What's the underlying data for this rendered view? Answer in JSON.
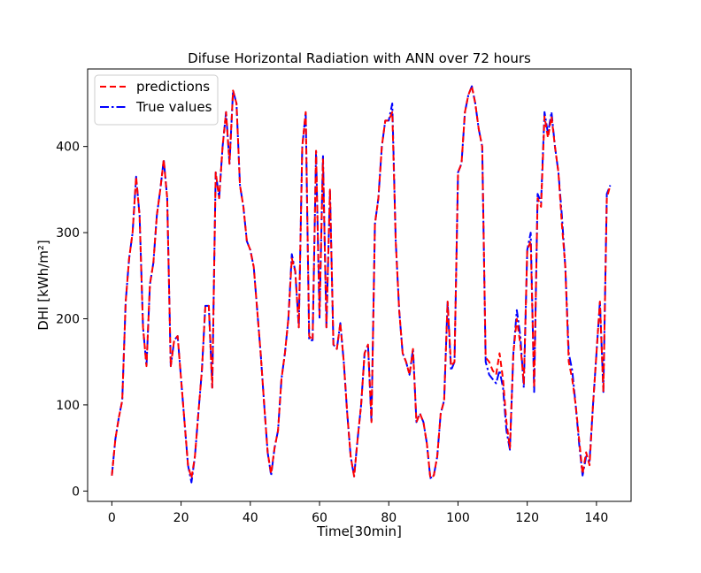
{
  "chart_data": {
    "type": "line",
    "title": "Difuse Horizontal Radiation with ANN over 72 hours",
    "xlabel": "Time[30min]",
    "ylabel": "DHI [kWh/m²]",
    "xlim": [
      -7,
      150
    ],
    "ylim": [
      -12,
      490
    ],
    "xticks": [
      0,
      20,
      40,
      60,
      80,
      100,
      120,
      140
    ],
    "yticks": [
      0,
      100,
      200,
      300,
      400
    ],
    "grid": false,
    "legend_position": "top-left",
    "series": [
      {
        "name": "predictions",
        "color": "#ff0000",
        "style": "dashed",
        "values": [
          18,
          60,
          85,
          105,
          220,
          270,
          300,
          365,
          320,
          190,
          145,
          240,
          265,
          320,
          350,
          385,
          340,
          145,
          175,
          180,
          130,
          80,
          30,
          15,
          40,
          90,
          140,
          215,
          215,
          120,
          370,
          340,
          400,
          440,
          380,
          465,
          450,
          355,
          330,
          290,
          280,
          260,
          210,
          160,
          100,
          45,
          20,
          50,
          70,
          130,
          160,
          200,
          270,
          255,
          190,
          400,
          440,
          180,
          175,
          395,
          205,
          385,
          190,
          350,
          170,
          165,
          195,
          150,
          90,
          40,
          17,
          60,
          100,
          160,
          170,
          80,
          310,
          340,
          400,
          430,
          430,
          440,
          290,
          210,
          160,
          150,
          135,
          165,
          80,
          90,
          80,
          55,
          15,
          18,
          40,
          90,
          105,
          220,
          145,
          150,
          370,
          380,
          440,
          460,
          470,
          450,
          420,
          400,
          155,
          150,
          140,
          135,
          160,
          130,
          80,
          50,
          160,
          200,
          170,
          125,
          280,
          290,
          120,
          340,
          330,
          435,
          410,
          435,
          400,
          370,
          310,
          260,
          150,
          130,
          100,
          60,
          20,
          45,
          30,
          100,
          160,
          220,
          115,
          340,
          355
        ]
      },
      {
        "name": "True values",
        "color": "#0000ff",
        "style": "dashdot",
        "values": [
          18,
          60,
          85,
          105,
          220,
          270,
          300,
          365,
          320,
          190,
          145,
          240,
          265,
          320,
          350,
          385,
          340,
          145,
          175,
          180,
          130,
          80,
          30,
          10,
          40,
          90,
          140,
          215,
          215,
          120,
          370,
          340,
          400,
          440,
          380,
          465,
          450,
          355,
          330,
          290,
          280,
          260,
          210,
          160,
          100,
          45,
          18,
          50,
          70,
          130,
          160,
          200,
          275,
          255,
          190,
          400,
          440,
          175,
          175,
          395,
          200,
          390,
          190,
          350,
          170,
          165,
          195,
          150,
          90,
          40,
          17,
          60,
          100,
          160,
          170,
          80,
          310,
          340,
          400,
          430,
          430,
          450,
          290,
          210,
          160,
          150,
          135,
          165,
          80,
          90,
          80,
          55,
          15,
          18,
          40,
          90,
          105,
          220,
          140,
          150,
          370,
          380,
          440,
          460,
          470,
          450,
          420,
          400,
          150,
          135,
          130,
          125,
          140,
          120,
          70,
          48,
          160,
          210,
          180,
          120,
          280,
          300,
          115,
          345,
          335,
          440,
          415,
          440,
          400,
          370,
          320,
          260,
          160,
          140,
          100,
          55,
          18,
          40,
          35,
          100,
          160,
          220,
          115,
          345,
          355
        ]
      }
    ]
  }
}
